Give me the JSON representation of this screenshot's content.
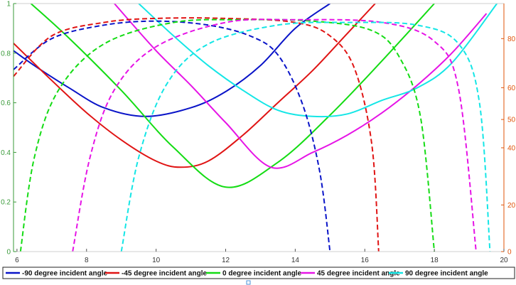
{
  "chart_data": {
    "type": "line",
    "title": "",
    "xlabel": "",
    "ylabel": "",
    "xlim": [
      5.9,
      20
    ],
    "ylim_left": [
      0,
      1
    ],
    "ylim_right": [
      0,
      92
    ],
    "x_ticks": [
      "6",
      "8",
      "10",
      "12",
      "14",
      "16",
      "18",
      "20"
    ],
    "left_ticks": [
      "0",
      "0.2",
      "0.4",
      "0.6",
      "0.8",
      "1"
    ],
    "right_ticks": [
      "0",
      "20",
      "40",
      "50",
      "60",
      "80"
    ],
    "right_tick_values": [
      0,
      17.3,
      38.5,
      49,
      60.8,
      79
    ],
    "grid": false,
    "legend_position": "bottom",
    "series": [
      {
        "name": "-90 degree incident angle",
        "color": "#0a14c8",
        "axis": "left",
        "style": "solid",
        "x": [
          5.9,
          6.5,
          7.5,
          8.5,
          9.7,
          11,
          12,
          13,
          14,
          15
        ],
        "y": [
          0.81,
          0.75,
          0.66,
          0.58,
          0.545,
          0.58,
          0.645,
          0.75,
          0.9,
          1.0
        ]
      },
      {
        "name": "-45 degree incident angle",
        "color": "#e01414",
        "axis": "left",
        "style": "solid",
        "x": [
          5.9,
          7,
          8,
          9,
          10,
          10.7,
          11.5,
          12.5,
          13.5,
          14.5,
          15.5,
          16.3
        ],
        "y": [
          0.84,
          0.69,
          0.56,
          0.45,
          0.365,
          0.34,
          0.365,
          0.47,
          0.6,
          0.73,
          0.88,
          1.0
        ]
      },
      {
        "name": "0 degree incident angle",
        "color": "#14dc14",
        "axis": "left",
        "style": "solid",
        "x": [
          6.4,
          7.5,
          9,
          10.5,
          12,
          13.5,
          15,
          16.5,
          18
        ],
        "y": [
          1.0,
          0.86,
          0.65,
          0.42,
          0.26,
          0.36,
          0.55,
          0.77,
          1.0
        ]
      },
      {
        "name": "45 degree incident angle",
        "color": "#e614e6",
        "axis": "left",
        "style": "solid",
        "x": [
          8.8,
          10,
          11,
          12,
          13.3,
          14.5,
          15.5,
          16.5,
          17.5,
          18.5,
          19.5
        ],
        "y": [
          1.0,
          0.81,
          0.67,
          0.52,
          0.34,
          0.4,
          0.47,
          0.56,
          0.67,
          0.8,
          0.96
        ]
      },
      {
        "name": "90 degree incident angle",
        "color": "#14e6e6",
        "axis": "left",
        "style": "solid",
        "x": [
          9.5,
          10.5,
          11.5,
          12.5,
          13.5,
          14.5,
          15.5,
          16.5,
          17.5,
          18.5,
          19.8
        ],
        "y": [
          1.0,
          0.87,
          0.75,
          0.65,
          0.57,
          0.545,
          0.555,
          0.61,
          0.66,
          0.76,
          1.0
        ]
      },
      {
        "name": "-90 degree incident angle",
        "color": "#0a14c8",
        "axis": "right",
        "style": "dashed",
        "x": [
          5.9,
          7,
          8.5,
          10,
          11.5,
          12.7,
          13.5,
          14.2,
          14.7,
          15.0
        ],
        "y": [
          67.5,
          79,
          84,
          85.5,
          84,
          80,
          73,
          55,
          30,
          0
        ]
      },
      {
        "name": "-45 degree incident angle",
        "color": "#e01414",
        "axis": "right",
        "style": "dashed",
        "x": [
          5.9,
          7,
          8.5,
          10,
          12,
          14,
          15,
          15.7,
          16.2,
          16.4
        ],
        "y": [
          65,
          80,
          85,
          86.5,
          86.5,
          85,
          80,
          68,
          40,
          0
        ]
      },
      {
        "name": "0 degree incident angle",
        "color": "#14dc14",
        "axis": "right",
        "style": "dashed",
        "x": [
          6.1,
          6.5,
          7.2,
          8.5,
          10.5,
          12.5,
          14.5,
          16.2,
          17,
          17.6,
          18.0
        ],
        "y": [
          0,
          35,
          60,
          77,
          85,
          86,
          85.5,
          82,
          72,
          50,
          0
        ]
      },
      {
        "name": "45 degree incident angle",
        "color": "#e614e6",
        "axis": "right",
        "style": "dashed",
        "x": [
          7.6,
          8.1,
          8.8,
          10,
          12,
          14,
          16.5,
          18,
          18.7,
          19.2
        ],
        "y": [
          0,
          35,
          60,
          76,
          85,
          86,
          85,
          78,
          60,
          0
        ]
      },
      {
        "name": "90 degree incident angle",
        "color": "#14e6e6",
        "axis": "right",
        "style": "dashed",
        "x": [
          9.0,
          9.5,
          10.3,
          11.5,
          13.5,
          15.5,
          17.5,
          18.7,
          19.3,
          19.6
        ],
        "y": [
          0,
          35,
          62,
          77,
          84,
          85,
          84,
          77,
          55,
          0
        ]
      }
    ],
    "legend": [
      {
        "label": "-90 degree incident angle",
        "color": "#0a14c8"
      },
      {
        "label": "-45 degree incident angle",
        "color": "#e01414"
      },
      {
        "label": "0 degree incident angle",
        "color": "#14dc14"
      },
      {
        "label": "45 degree incident angle",
        "color": "#e614e6"
      },
      {
        "label": "90 degree incident angle",
        "color": "#14e6e6"
      }
    ]
  }
}
